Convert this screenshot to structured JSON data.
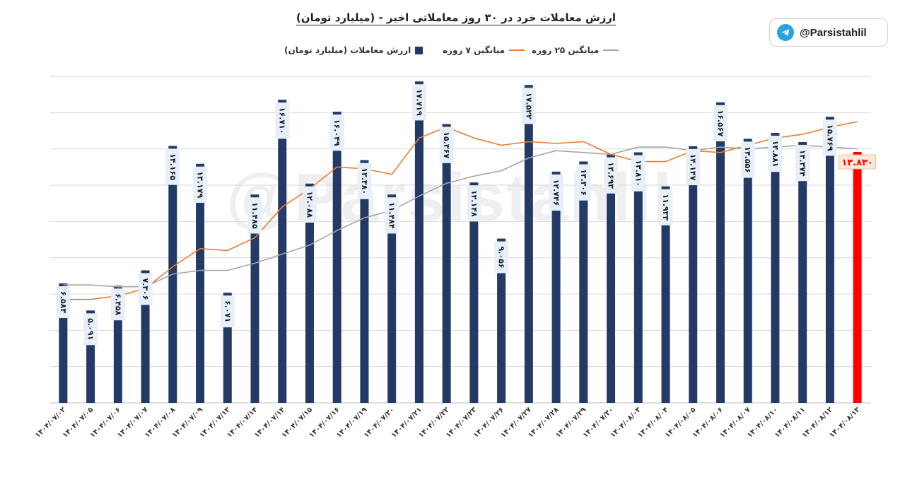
{
  "title": "ارزش معاملات خرد در ۳۰ روز معاملاتی اخیر - (میلیارد تومان)",
  "handle": "@Parsistahlil",
  "watermark": "@Parsistahlil",
  "colors": {
    "bar": "#233a66",
    "last_bar": "#ff0000",
    "ma7": "#ed7d31",
    "ma25": "#a5a5a5",
    "grid": "#d9d9d9",
    "label_bg": "#e8f0f7",
    "last_label": "#ff0000"
  },
  "legend": {
    "bars": "ارزش معاملات (میلیارد تومان)",
    "ma7": "میانگین ۷ روزه",
    "ma25": "میانگین ۲۵ روزه"
  },
  "chart_data": {
    "type": "bar",
    "title": "ارزش معاملات خرد در ۳۰ روز معاملاتی اخیر - (میلیارد تومان)",
    "ylim": [
      0,
      18
    ],
    "grid": true,
    "legend_position": "top",
    "categories": [
      "۱۴۰۴/۰۷/۰۲",
      "۱۴۰۴/۰۷/۰۵",
      "۱۴۰۴/۰۷/۰۶",
      "۱۴۰۴/۰۷/۰۷",
      "۱۴۰۴/۰۷/۰۸",
      "۱۴۰۴/۰۷/۰۹",
      "۱۴۰۴/۰۷/۱۳",
      "۱۴۰۴/۰۷/۱۴",
      "۱۴۰۴/۰۷/۱۴",
      "۱۴۰۴/۰۷/۱۵",
      "۱۴۰۴/۰۷/۱۶",
      "۱۴۰۴/۰۷/۱۹",
      "۱۴۰۴/۰۷/۲۰",
      "۱۴۰۴/۰۷/۲۱",
      "۱۴۰۴/۰۷/۲۲",
      "۱۴۰۴/۰۷/۲۳",
      "۱۴۰۴/۰۷/۲۶",
      "۱۴۰۴/۰۷/۲۷",
      "۱۴۰۴/۰۷/۲۸",
      "۱۴۰۴/۰۷/۲۹",
      "۱۴۰۴/۰۷/۳۰",
      "۱۴۰۴/۰۸/۰۳",
      "۱۴۰۴/۰۸/۰۴",
      "۱۴۰۴/۰۸/۰۵",
      "۱۴۰۴/۰۸/۰۶",
      "۱۴۰۴/۰۸/۰۷",
      "۱۴۰۴/۰۸/۱۰",
      "۱۴۰۴/۰۸/۱۱",
      "۱۴۰۴/۰۸/۱۲",
      "۱۴۰۴/۰۸/۱۳"
    ],
    "series": [
      {
        "name": "ارزش معاملات (میلیارد تومان)",
        "type": "bar",
        "values": [
          6.583,
          5.091,
          6.458,
          7.306,
          14.165,
          13.179,
          6.071,
          11.485,
          16.71,
          12.088,
          16.049,
          13.38,
          11.484,
          17.719,
          15.367,
          12.148,
          9.056,
          17.522,
          12.746,
          13.306,
          13.693,
          13.81,
          11.933,
          14.147,
          16.567,
          14.556,
          14.881,
          14.374,
          15.769,
          13.83
        ],
        "labels": [
          "۶.۵۸۳",
          "۵.۰۹۱",
          "۶.۴۵۸",
          "۷.۳۰۶",
          "۱۴.۱۶۵",
          "۱۳.۱۷۹",
          "۶.۰۷۱",
          "۱۱.۴۸۵",
          "۱۶.۷۱۰",
          "۱۲.۰۸۸",
          "۱۶.۰۴۹",
          "۱۳.۳۸۰",
          "۱۱.۴۸۴",
          "۱۷.۷۱۹",
          "۱۵.۳۶۷",
          "۱۲.۱۴۸",
          "۹.۰۵۶",
          "۱۷.۵۲۲",
          "۱۲.۷۴۶",
          "۱۳.۳۰۶",
          "۱۳.۶۹۳",
          "۱۳.۸۱۰",
          "۱۱.۹۳۳",
          "۱۴.۱۴۷",
          "۱۶.۵۶۷",
          "۱۴.۵۵۶",
          "۱۴.۸۸۱",
          "۱۴.۳۷۴",
          "۱۵.۷۶۹",
          "۱۳.۸۳۰"
        ]
      },
      {
        "name": "میانگین ۷ روزه",
        "type": "line",
        "values": [
          5.7,
          5.7,
          5.9,
          6.3,
          7.5,
          8.5,
          8.4,
          9.1,
          10.8,
          11.8,
          13.0,
          12.9,
          12.6,
          14.6,
          15.2,
          14.6,
          14.2,
          14.4,
          14.3,
          14.4,
          13.7,
          13.3,
          13.3,
          13.9,
          13.8,
          14.2,
          14.6,
          14.8,
          15.2,
          15.5
        ]
      },
      {
        "name": "میانگین ۲۵ روزه",
        "type": "line",
        "values": [
          6.5,
          6.5,
          6.4,
          6.4,
          7.1,
          7.3,
          7.3,
          7.7,
          8.2,
          8.7,
          9.5,
          10.2,
          10.6,
          11.4,
          12.1,
          12.5,
          12.8,
          13.5,
          13.9,
          13.8,
          13.7,
          14.1,
          14.1,
          13.9,
          14.1,
          14.0,
          14.1,
          14.2,
          14.1,
          14.0
        ]
      }
    ]
  }
}
